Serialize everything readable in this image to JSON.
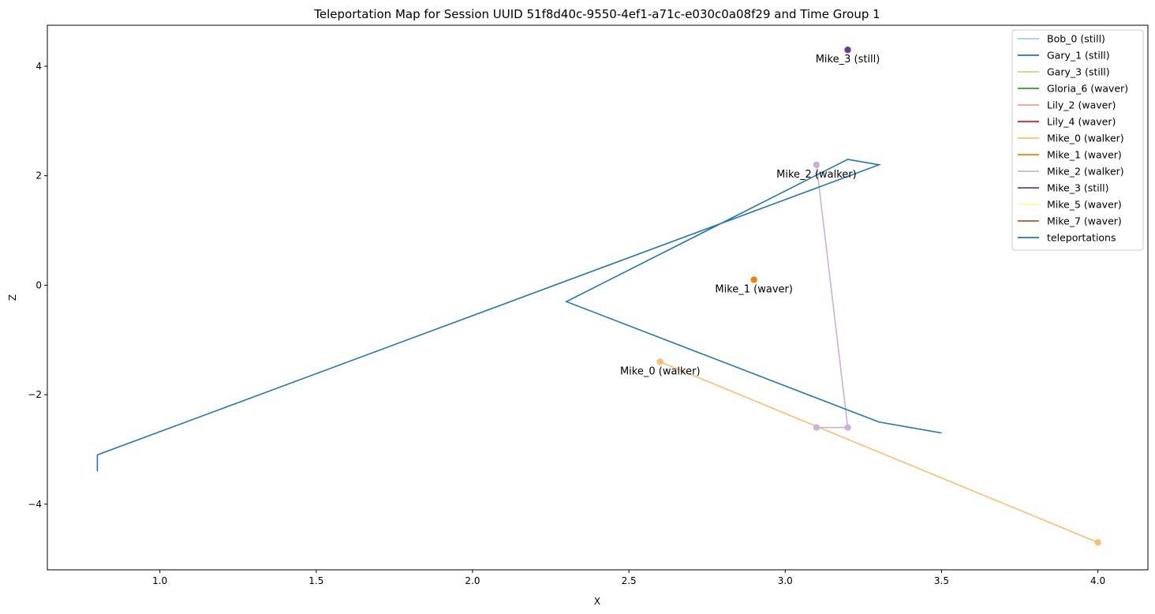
{
  "chart_data": {
    "type": "line",
    "title": "Teleportation Map for Session UUID 51f8d40c-9550-4ef1-a71c-e030c0a08f29 and Time Group 1",
    "xlabel": "X",
    "ylabel": "Z",
    "xlim": [
      0.64,
      4.16
    ],
    "ylim": [
      -5.2,
      4.75
    ],
    "xticks": [
      1.0,
      1.5,
      2.0,
      2.5,
      3.0,
      3.5,
      4.0
    ],
    "xtick_labels": [
      "1.0",
      "1.5",
      "2.0",
      "2.5",
      "3.0",
      "3.5",
      "4.0"
    ],
    "yticks": [
      4,
      2,
      0,
      -2,
      -4
    ],
    "ytick_labels": [
      "4",
      "2",
      "0",
      "−2",
      "−4"
    ],
    "grid": false,
    "legend_position": "top-right",
    "series": [
      {
        "name": "Bob_0 (still)",
        "color": "#a6cee3",
        "points": []
      },
      {
        "name": "Gary_1 (still)",
        "color": "#1f78b4",
        "points": []
      },
      {
        "name": "Gary_3 (still)",
        "color": "#b2df8a",
        "points": []
      },
      {
        "name": "Gloria_6 (waver)",
        "color": "#33a02c",
        "points": []
      },
      {
        "name": "Lily_2 (waver)",
        "color": "#fb9a99",
        "points": []
      },
      {
        "name": "Lily_4 (waver)",
        "color": "#e31a1c",
        "points": []
      },
      {
        "name": "Mike_0 (walker)",
        "color": "#fdbf6f",
        "points": [
          [
            2.6,
            -1.4
          ],
          [
            4.0,
            -4.7
          ]
        ],
        "label": "Mike_0 (walker)"
      },
      {
        "name": "Mike_1 (waver)",
        "color": "#ff7f00",
        "points": [
          [
            2.9,
            0.1
          ]
        ],
        "label": "Mike_1 (waver)"
      },
      {
        "name": "Mike_2 (walker)",
        "color": "#cab2d6",
        "points": [
          [
            3.1,
            2.2
          ],
          [
            3.2,
            -2.6
          ],
          [
            3.1,
            -2.6
          ]
        ],
        "label": "Mike_2 (walker)"
      },
      {
        "name": "Mike_3 (still)",
        "color": "#6a3d9a",
        "points": [
          [
            3.2,
            4.3
          ]
        ],
        "label": "Mike_3 (still)"
      },
      {
        "name": "Mike_5 (waver)",
        "color": "#ffff99",
        "points": []
      },
      {
        "name": "Mike_7 (waver)",
        "color": "#b15928",
        "points": []
      },
      {
        "name": "teleportations",
        "color": "#1f77b4",
        "points": [
          [
            0.8,
            -3.4
          ],
          [
            0.8,
            -3.1
          ],
          [
            3.3,
            2.2
          ],
          [
            3.2,
            2.3
          ],
          [
            2.3,
            -0.3
          ],
          [
            3.3,
            -2.5
          ],
          [
            3.5,
            -2.7
          ]
        ],
        "markers": false
      }
    ]
  }
}
